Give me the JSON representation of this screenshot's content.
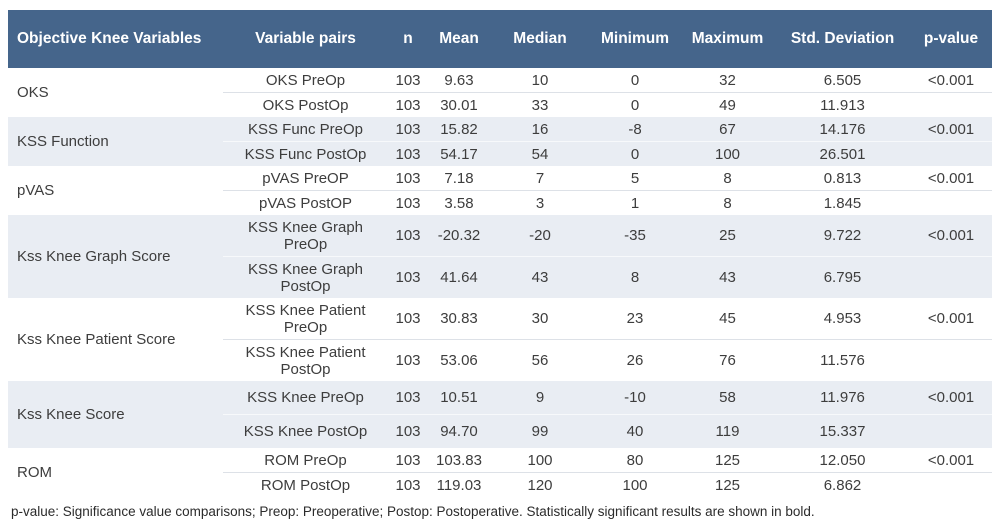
{
  "table": {
    "columns": [
      "Objective Knee Variables",
      "Variable pairs",
      "n",
      "Mean",
      "Median",
      "Minimum",
      "Maximum",
      "Std. Deviation",
      "p-value"
    ],
    "groups": [
      {
        "name": "OKS",
        "rows": [
          {
            "pair": "OKS PreOp",
            "n": "103",
            "mean": "9.63",
            "median": "10",
            "min": "0",
            "max": "32",
            "sd": "6.505",
            "p": "<0.001"
          },
          {
            "pair": "OKS PostOp",
            "n": "103",
            "mean": "30.01",
            "median": "33",
            "min": "0",
            "max": "49",
            "sd": "11.913",
            "p": ""
          }
        ]
      },
      {
        "name": "KSS Function",
        "rows": [
          {
            "pair": "KSS Func PreOp",
            "n": "103",
            "mean": "15.82",
            "median": "16",
            "min": "-8",
            "max": "67",
            "sd": "14.176",
            "p": "<0.001"
          },
          {
            "pair": "KSS Func PostOp",
            "n": "103",
            "mean": "54.17",
            "median": "54",
            "min": "0",
            "max": "100",
            "sd": "26.501",
            "p": ""
          }
        ]
      },
      {
        "name": "pVAS",
        "rows": [
          {
            "pair": "pVAS PreOP",
            "n": "103",
            "mean": "7.18",
            "median": "7",
            "min": "5",
            "max": "8",
            "sd": "0.813",
            "p": "<0.001"
          },
          {
            "pair": "pVAS PostOP",
            "n": "103",
            "mean": "3.58",
            "median": "3",
            "min": "1",
            "max": "8",
            "sd": "1.845",
            "p": ""
          }
        ]
      },
      {
        "name": "Kss Knee Graph Score",
        "rows": [
          {
            "pair": "KSS Knee Graph PreOp",
            "n": "103",
            "mean": "-20.32",
            "median": "-20",
            "min": "-35",
            "max": "25",
            "sd": "9.722",
            "p": "<0.001"
          },
          {
            "pair": "KSS Knee Graph PostOp",
            "n": "103",
            "mean": "41.64",
            "median": "43",
            "min": "8",
            "max": "43",
            "sd": "6.795",
            "p": ""
          }
        ]
      },
      {
        "name": "Kss Knee Patient Score",
        "rows": [
          {
            "pair": "KSS Knee Patient PreOp",
            "n": "103",
            "mean": "30.83",
            "median": "30",
            "min": "23",
            "max": "45",
            "sd": "4.953",
            "p": "<0.001"
          },
          {
            "pair": "KSS Knee Patient PostOp",
            "n": "103",
            "mean": "53.06",
            "median": "56",
            "min": "26",
            "max": "76",
            "sd": "11.576",
            "p": ""
          }
        ]
      },
      {
        "name": "Kss Knee Score",
        "rows": [
          {
            "pair": "KSS Knee PreOp",
            "n": "103",
            "mean": "10.51",
            "median": "9",
            "min": "-10",
            "max": "58",
            "sd": "11.976",
            "p": "<0.001"
          },
          {
            "pair": "KSS Knee PostOp",
            "n": "103",
            "mean": "94.70",
            "median": "99",
            "min": "40",
            "max": "119",
            "sd": "15.337",
            "p": ""
          }
        ]
      },
      {
        "name": "ROM",
        "rows": [
          {
            "pair": "ROM PreOp",
            "n": "103",
            "mean": "103.83",
            "median": "100",
            "min": "80",
            "max": "125",
            "sd": "12.050",
            "p": "<0.001"
          },
          {
            "pair": "ROM PostOp",
            "n": "103",
            "mean": "119.03",
            "median": "120",
            "min": "100",
            "max": "125",
            "sd": "6.862",
            "p": ""
          }
        ]
      }
    ]
  },
  "footnote": "p-value: Significance value comparisons; Preop: Preoperative; Postop: Postoperative. Statistically significant results are shown in bold.",
  "colors": {
    "header_bg": "#45658B",
    "header_text": "#FFFFFF",
    "band_bg": "#E9EDF3",
    "body_text": "#3D3D3D"
  }
}
